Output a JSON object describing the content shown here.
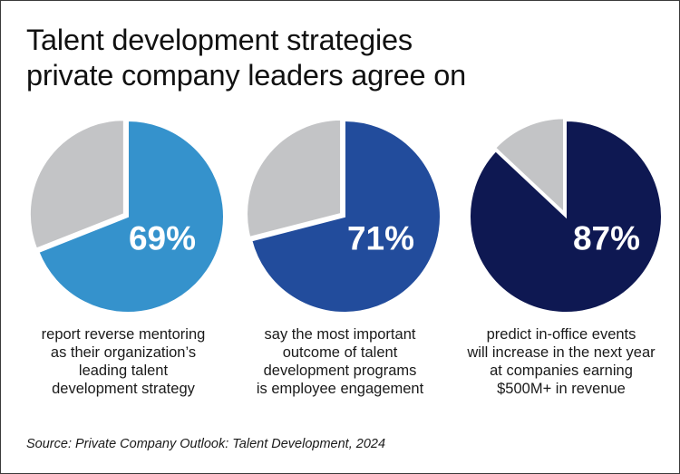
{
  "title": {
    "line1": "Talent development strategies",
    "line2": "private company leaders agree on"
  },
  "chart_data": [
    {
      "type": "pie",
      "value": 69,
      "label": "69%",
      "color": "#3592cc",
      "remainder_color": "#c3c4c6",
      "caption": [
        "report reverse mentoring",
        "as their organization’s",
        "leading talent",
        "development strategy"
      ]
    },
    {
      "type": "pie",
      "value": 71,
      "label": "71%",
      "color": "#224c9c",
      "remainder_color": "#c3c4c6",
      "caption": [
        "say the most important",
        "outcome of talent",
        "development programs",
        "is employee engagement"
      ]
    },
    {
      "type": "pie",
      "value": 87,
      "label": "87%",
      "color": "#0e1852",
      "remainder_color": "#c3c4c6",
      "caption": [
        "predict in-office events",
        "will increase in the next year",
        "at companies earning",
        "$500M+ in revenue"
      ]
    }
  ],
  "source": "Source: Private Company Outlook: Talent Development, 2024"
}
